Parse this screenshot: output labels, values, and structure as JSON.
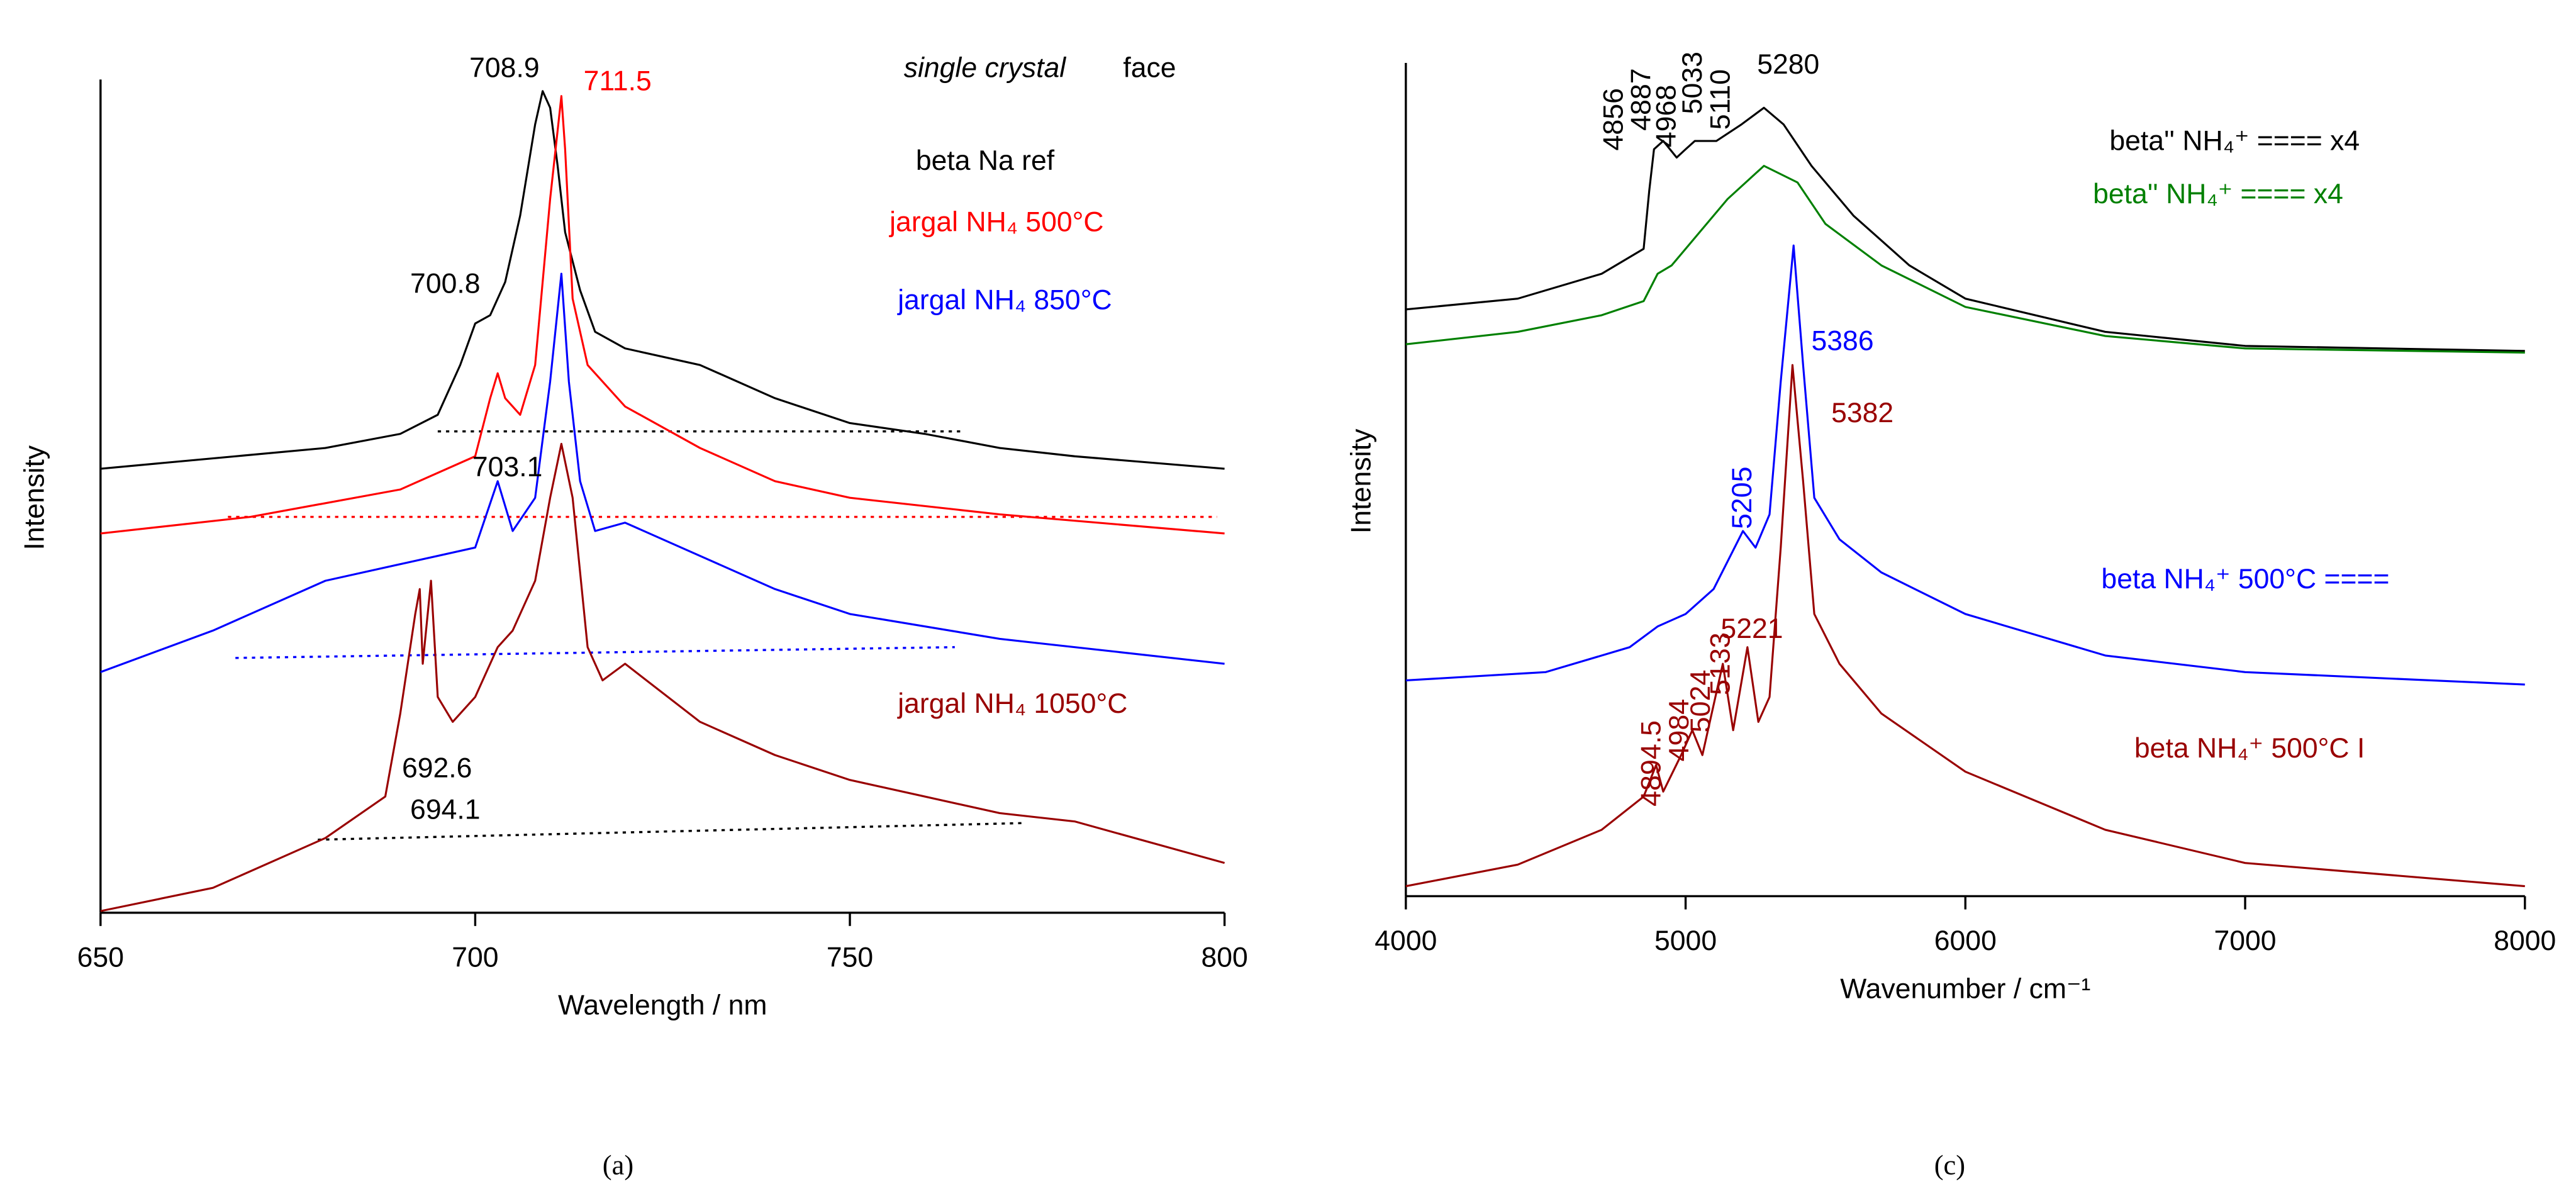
{
  "chart_data": [
    {
      "type": "line",
      "panel_label": "(a)",
      "xlabel": "Wavelength / nm",
      "ylabel": "Intensity",
      "xlim": [
        650,
        800
      ],
      "xticks": [
        650,
        700,
        750,
        800
      ],
      "ylim": [
        0,
        100
      ],
      "series": [
        {
          "name": "beta Na ref",
          "color": "#000000",
          "label_x": 758.8,
          "label_y": 90.4,
          "x": [
            650,
            680,
            690,
            695,
            698,
            700,
            702,
            704,
            706,
            708,
            709,
            710,
            711,
            712,
            714,
            716,
            720,
            730,
            740,
            750,
            760,
            770,
            780,
            800
          ],
          "values": [
            53.5,
            56,
            57.7,
            60,
            66,
            71,
            72,
            76,
            84,
            95,
            99,
            97,
            90,
            82,
            75,
            70,
            68,
            66,
            62,
            59,
            57.7,
            56,
            55,
            53.5
          ]
        },
        {
          "name": "jargal NH₄ 500°C",
          "color": "#ff0000",
          "label_x": 755.3,
          "label_y": 83,
          "x": [
            650,
            670,
            690,
            700,
            702,
            703,
            704,
            706,
            708,
            710,
            711.5,
            712,
            713,
            715,
            720,
            730,
            740,
            750,
            770,
            800
          ],
          "values": [
            45.7,
            47.7,
            51,
            55,
            62,
            65,
            62,
            60,
            66,
            86,
            98.4,
            92,
            74,
            66,
            61,
            56,
            52,
            50,
            48,
            45.7
          ]
        },
        {
          "name": "jargal NH₄ 850°C",
          "color": "#0000ff",
          "label_x": 756.4,
          "label_y": 73.6,
          "x": [
            650,
            665,
            680,
            695,
            700,
            703,
            705,
            708,
            710,
            711.5,
            712.5,
            714,
            716,
            720,
            730,
            740,
            750,
            770,
            800
          ],
          "values": [
            29,
            34,
            40,
            43,
            44,
            52,
            46,
            50,
            64,
            77,
            64,
            52,
            46,
            47,
            43,
            39,
            36,
            33,
            30
          ]
        },
        {
          "name": "jargal NH₄ 1050°C",
          "color": "#990000",
          "label_x": 756.4,
          "label_y": 25,
          "x": [
            650,
            665,
            680,
            688,
            690,
            692,
            692.6,
            693,
            694.1,
            695,
            697,
            700,
            703,
            705,
            708,
            710,
            711.5,
            713,
            715,
            717,
            720,
            730,
            740,
            750,
            760,
            770,
            780,
            800
          ],
          "values": [
            0.2,
            3,
            9,
            14,
            24,
            36,
            39,
            30,
            40,
            26,
            23,
            26,
            32,
            34,
            40,
            50,
            56.5,
            50,
            32,
            28,
            30,
            23,
            19,
            16,
            14,
            12,
            11,
            6
          ]
        }
      ],
      "baselines": [
        {
          "color": "#000000",
          "x": [
            695,
            765
          ],
          "values": [
            58,
            58
          ]
        },
        {
          "color": "#ff0000",
          "x": [
            667,
            799
          ],
          "values": [
            47.7,
            47.7
          ]
        },
        {
          "color": "#0000ff",
          "x": [
            668,
            764
          ],
          "values": [
            30.7,
            32
          ]
        },
        {
          "color": "#000000",
          "x": [
            679,
            773
          ],
          "values": [
            8.8,
            10.8
          ]
        }
      ],
      "annotations": [
        {
          "text": "single crystal",
          "x": 768,
          "y": 101.6,
          "color": "#000000"
        },
        {
          "text": "face",
          "x": 790,
          "y": 101.6,
          "color": "#000000"
        },
        {
          "text": "708.9",
          "x": 703.9,
          "y": 101.6,
          "color": "#000000"
        },
        {
          "text": "711.5",
          "x": 719,
          "y": 100,
          "color": "#ff0000"
        },
        {
          "text": "700.8",
          "x": 696,
          "y": 75.6,
          "color": "#000000"
        },
        {
          "text": "703.1",
          "x": 704.3,
          "y": 53.5,
          "color": "#000000"
        },
        {
          "text": "692.6",
          "x": 694.9,
          "y": 17.2,
          "color": "#000000"
        },
        {
          "text": "694.1",
          "x": 696,
          "y": 12.2,
          "color": "#000000"
        }
      ]
    },
    {
      "type": "line",
      "panel_label": "(c)",
      "xlabel": "Wavenumber / cm⁻¹",
      "ylabel": "Intensity",
      "xlim": [
        4000,
        8000
      ],
      "xticks": [
        4000,
        5000,
        6000,
        7000,
        8000
      ],
      "ylim": [
        0,
        100
      ],
      "series": [
        {
          "name": "beta'' NH₄⁺ ==== x4",
          "color": "#000000",
          "label_x": 6515,
          "label_y": 90.8,
          "x": [
            4000,
            4400,
            4700,
            4850,
            4870,
            4887,
            4920,
            4968,
            5000,
            5033,
            5110,
            5200,
            5280,
            5350,
            5450,
            5600,
            5800,
            6000,
            6500,
            7000,
            8000
          ],
          "values": [
            70.7,
            72,
            75,
            78,
            85,
            90,
            91,
            89,
            90,
            91,
            91,
            93,
            95,
            93,
            88,
            82,
            76,
            72,
            68,
            66.3,
            65.7
          ]
        },
        {
          "name": "beta'' NH₄⁺ ==== x4",
          "color": "#008000",
          "label_x": 6456,
          "label_y": 84.4,
          "x": [
            4000,
            4400,
            4700,
            4850,
            4900,
            4950,
            5050,
            5150,
            5280,
            5400,
            5500,
            5700,
            6000,
            6500,
            7000,
            8000
          ],
          "values": [
            66.5,
            68,
            70,
            71.7,
            75,
            76,
            80,
            84,
            88,
            86,
            81,
            76,
            71,
            67.5,
            66,
            65.5
          ]
        },
        {
          "name": "beta NH₄⁺ 500°C ====",
          "color": "#0000ff",
          "label_x": 6486,
          "label_y": 38,
          "x": [
            4000,
            4500,
            4800,
            4900,
            5000,
            5100,
            5205,
            5250,
            5300,
            5340,
            5386,
            5420,
            5460,
            5550,
            5700,
            6000,
            6500,
            7000,
            8000
          ],
          "values": [
            26,
            27,
            30,
            32.5,
            34,
            37,
            44,
            42,
            46,
            62,
            78.4,
            64,
            48,
            43,
            39,
            34,
            29,
            27,
            25.5
          ]
        },
        {
          "name": "beta NH₄⁺ 500°C I",
          "color": "#990000",
          "label_x": 6604,
          "label_y": 17.6,
          "x": [
            4000,
            4400,
            4700,
            4850,
            4894.5,
            4920,
            4984,
            5024,
            5060,
            5133,
            5170,
            5221,
            5260,
            5300,
            5340,
            5382,
            5420,
            5460,
            5550,
            5700,
            6000,
            6500,
            7000,
            8000
          ],
          "values": [
            1.2,
            3.8,
            8,
            12,
            15.8,
            12.6,
            17,
            20,
            17,
            28,
            20,
            30,
            21,
            24,
            42,
            64,
            50,
            34,
            28,
            22,
            15,
            8,
            4,
            1.2
          ]
        }
      ],
      "baselines": [],
      "annotations": [
        {
          "text": "4856",
          "x": 4748,
          "y": 93.6,
          "color": "#000000"
        },
        {
          "text": "4887",
          "x": 4848,
          "y": 96,
          "color": "#000000"
        },
        {
          "text": "4968",
          "x": 4937,
          "y": 94,
          "color": "#000000"
        },
        {
          "text": "5033",
          "x": 5031,
          "y": 98,
          "color": "#000000"
        },
        {
          "text": "5110",
          "x": 5131,
          "y": 96,
          "color": "#000000"
        },
        {
          "text": "5280",
          "x": 5367,
          "y": 100,
          "color": "#000000"
        },
        {
          "text": "5386",
          "x": 5561,
          "y": 66.7,
          "color": "#0000ff"
        },
        {
          "text": "5382",
          "x": 5632,
          "y": 58,
          "color": "#990000"
        },
        {
          "text": "5205",
          "x": 5208,
          "y": 48,
          "color": "#0000ff"
        },
        {
          "text": "4894.5",
          "x": 4884,
          "y": 16,
          "color": "#990000"
        },
        {
          "text": "4984",
          "x": 4984,
          "y": 20,
          "color": "#990000"
        },
        {
          "text": "5024",
          "x": 5060,
          "y": 23.5,
          "color": "#990000"
        },
        {
          "text": "5133",
          "x": 5131,
          "y": 28,
          "color": "#990000"
        },
        {
          "text": "5221",
          "x": 5237,
          "y": 32,
          "color": "#990000"
        }
      ]
    }
  ]
}
